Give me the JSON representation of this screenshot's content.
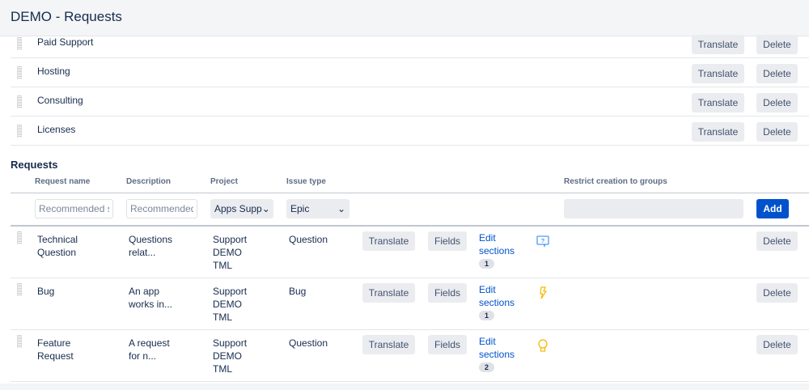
{
  "header": {
    "title": "DEMO - Requests"
  },
  "categories": [
    {
      "name": "Paid Support",
      "translate": "Translate",
      "delete": "Delete"
    },
    {
      "name": "Hosting",
      "translate": "Translate",
      "delete": "Delete"
    },
    {
      "name": "Consulting",
      "translate": "Translate",
      "delete": "Delete"
    },
    {
      "name": "Licenses",
      "translate": "Translate",
      "delete": "Delete"
    }
  ],
  "requests": {
    "heading": "Requests",
    "columns": {
      "name": "Request name",
      "description": "Description",
      "project": "Project",
      "issue_type": "Issue type",
      "restrict": "Restrict creation to groups"
    },
    "form": {
      "name_placeholder": "Recommended si",
      "description_placeholder": "Recommended",
      "project_value": "Apps Supp",
      "issue_type_value": "Epic",
      "groups_value": "",
      "add_label": "Add"
    },
    "rows": [
      {
        "name": "Technical Question",
        "description": "Questions relat...",
        "project": [
          "Support",
          "DEMO",
          "TML"
        ],
        "issue_type": "Question",
        "translate": "Translate",
        "fields": "Fields",
        "edit": "Edit sections",
        "count": "1",
        "icon": "question-icon",
        "delete": "Delete"
      },
      {
        "name": "Bug",
        "description": "An app works in...",
        "project": [
          "Support",
          "DEMO",
          "TML"
        ],
        "issue_type": "Bug",
        "translate": "Translate",
        "fields": "Fields",
        "edit": "Edit sections",
        "count": "1",
        "icon": "lightning-icon",
        "delete": "Delete"
      },
      {
        "name": "Feature Request",
        "description": "A request for n...",
        "project": [
          "Support",
          "DEMO",
          "TML"
        ],
        "issue_type": "Question",
        "translate": "Translate",
        "fields": "Fields",
        "edit": "Edit sections",
        "count": "2",
        "icon": "lightbulb-icon",
        "delete": "Delete"
      }
    ]
  },
  "colors": {
    "accent": "#0052cc",
    "link": "#0052cc",
    "icon_blue": "#4c9aff",
    "icon_yellow": "#f5b800"
  }
}
